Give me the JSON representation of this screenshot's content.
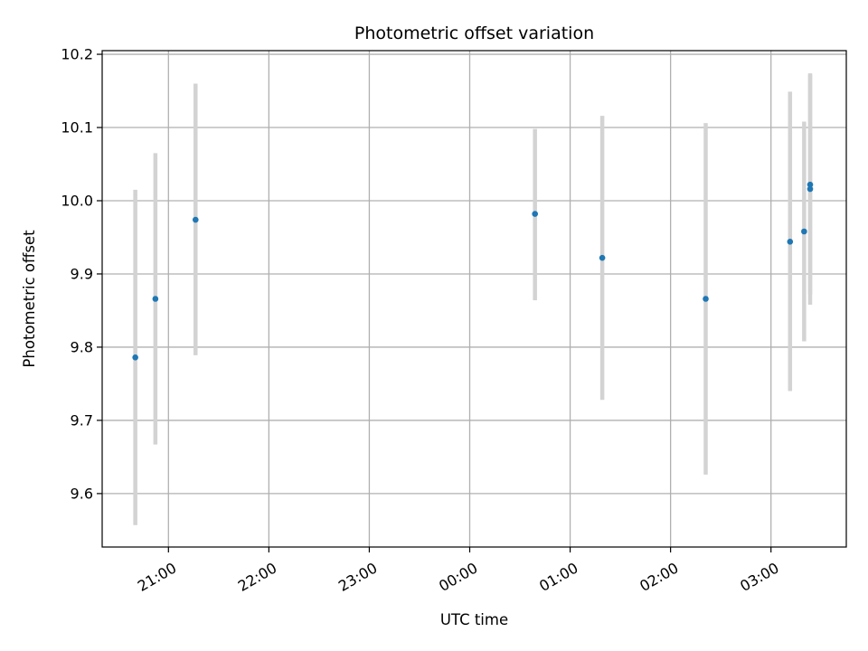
{
  "chart_data": {
    "type": "scatter",
    "title": "Photometric offset variation",
    "xlabel": "UTC time",
    "ylabel": "Photometric offset",
    "x_tick_labels": [
      "21:00",
      "22:00",
      "23:00",
      "00:00",
      "01:00",
      "02:00",
      "03:00"
    ],
    "x_tick_hours": [
      21,
      22,
      23,
      24,
      25,
      26,
      27
    ],
    "y_tick_labels": [
      "9.6",
      "9.7",
      "9.8",
      "9.9",
      "10.0",
      "10.1",
      "10.2"
    ],
    "y_ticks": [
      9.6,
      9.7,
      9.8,
      9.9,
      10.0,
      10.1,
      10.2
    ],
    "xlim_hours": [
      20.34,
      27.75
    ],
    "ylim": [
      9.527,
      10.205
    ],
    "grid": true,
    "marker_color": "#1f77b4",
    "errorbar_color": "#d3d3d3",
    "points": [
      {
        "t": "20:40",
        "hours": 20.67,
        "y": 9.786,
        "ylow": 9.557,
        "yhigh": 10.015
      },
      {
        "t": "20:52",
        "hours": 20.87,
        "y": 9.866,
        "ylow": 9.667,
        "yhigh": 10.065
      },
      {
        "t": "21:16",
        "hours": 21.27,
        "y": 9.974,
        "ylow": 9.789,
        "yhigh": 10.16
      },
      {
        "t": "00:39",
        "hours": 24.65,
        "y": 9.982,
        "ylow": 9.864,
        "yhigh": 10.098
      },
      {
        "t": "01:19",
        "hours": 25.32,
        "y": 9.922,
        "ylow": 9.728,
        "yhigh": 10.116
      },
      {
        "t": "02:21",
        "hours": 26.35,
        "y": 9.866,
        "ylow": 9.626,
        "yhigh": 10.106
      },
      {
        "t": "03:11",
        "hours": 27.19,
        "y": 9.944,
        "ylow": 9.74,
        "yhigh": 10.149
      },
      {
        "t": "03:20",
        "hours": 27.33,
        "y": 9.958,
        "ylow": 9.808,
        "yhigh": 10.108
      },
      {
        "t": "03:23",
        "hours": 27.39,
        "y": 10.022,
        "ylow": 9.872,
        "yhigh": 10.172
      },
      {
        "t": "03:23",
        "hours": 27.39,
        "y": 10.016,
        "ylow": 9.858,
        "yhigh": 10.174
      }
    ]
  }
}
